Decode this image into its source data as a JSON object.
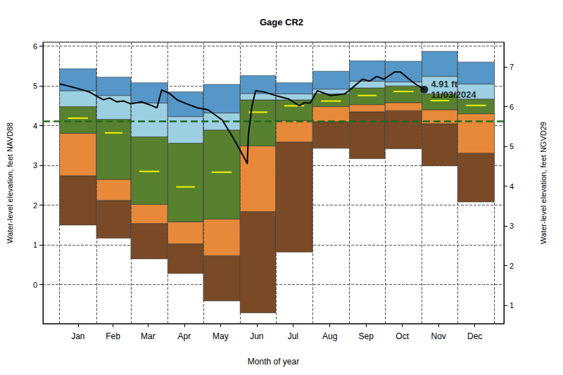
{
  "chart_data": {
    "type": "line",
    "title": "Gage CR2",
    "xlabel": "Month of year",
    "ylabel": "Water-level elevation, feet NAVD88",
    "y2label": "Water-level elevation, feet NGVD29",
    "xlim": [
      -14,
      374
    ],
    "xticks": [
      {
        "value": 15.5,
        "label": "Jan"
      },
      {
        "value": 45,
        "label": "Feb"
      },
      {
        "value": 74.5,
        "label": "Mar"
      },
      {
        "value": 105,
        "label": "Apr"
      },
      {
        "value": 135.5,
        "label": "May"
      },
      {
        "value": 166,
        "label": "Jun"
      },
      {
        "value": 196.5,
        "label": "Jul"
      },
      {
        "value": 227.5,
        "label": "Aug"
      },
      {
        "value": 258,
        "label": "Sep"
      },
      {
        "value": 288.5,
        "label": "Oct"
      },
      {
        "value": 319,
        "label": "Nov"
      },
      {
        "value": 349.5,
        "label": "Dec"
      }
    ],
    "ylim": [
      -0.98,
      6.1
    ],
    "yticks": [
      0,
      1,
      2,
      3,
      4,
      5,
      6
    ],
    "y2lim": [
      0.54,
      7.62
    ],
    "y2ticks": [
      1,
      2,
      3,
      4,
      5,
      6,
      7
    ],
    "grid": true,
    "month_starts": [
      0,
      31,
      60,
      91,
      121,
      152,
      182,
      213,
      244,
      274,
      305,
      335,
      366
    ],
    "percentile_bands": {
      "min": [
        1.5,
        1.17,
        0.65,
        0.28,
        -0.41,
        -0.71,
        0.82,
        3.43,
        3.17,
        3.42,
        2.99,
        2.08
      ],
      "p10": [
        2.74,
        2.12,
        1.54,
        1.03,
        0.73,
        1.84,
        3.59,
        4.1,
        4.35,
        4.38,
        4.05,
        3.31
      ],
      "p25": [
        3.81,
        2.65,
        2.02,
        1.58,
        1.65,
        3.49,
        4.13,
        4.48,
        4.53,
        4.58,
        4.4,
        4.3
      ],
      "median": [
        4.19,
        3.82,
        2.85,
        2.46,
        2.83,
        4.34,
        4.5,
        4.62,
        4.76,
        4.86,
        4.63,
        4.51
      ],
      "p75": [
        4.48,
        4.16,
        3.72,
        3.56,
        3.89,
        4.65,
        4.65,
        4.8,
        4.95,
        5.0,
        4.8,
        4.67
      ],
      "p90": [
        4.88,
        4.76,
        4.57,
        4.23,
        4.32,
        4.81,
        4.8,
        4.92,
        5.12,
        5.1,
        5.24,
        5.05
      ],
      "max": [
        5.43,
        5.22,
        5.08,
        4.85,
        5.04,
        5.26,
        5.08,
        5.37,
        5.63,
        5.62,
        5.87,
        5.6
      ],
      "colors": [
        "#7a4a26",
        "#e8893a",
        "#58812f",
        "#9ccfe2",
        "#5597c8"
      ],
      "median_color": "#f2f200"
    },
    "series": [
      {
        "color": "#000000",
        "x": [
          0,
          7,
          16,
          25,
          31,
          37,
          42,
          48,
          54,
          60,
          69,
          78,
          82,
          86,
          93,
          99,
          107,
          116,
          125,
          137,
          146,
          155,
          158,
          159,
          162,
          165,
          172,
          184,
          193,
          202,
          206,
          211,
          217,
          228,
          240,
          246,
          255,
          261,
          267,
          273,
          282,
          287,
          293,
          299,
          307
        ],
        "values": [
          5.05,
          5.0,
          4.93,
          4.85,
          4.75,
          4.65,
          4.7,
          4.6,
          4.62,
          4.55,
          4.6,
          4.5,
          4.45,
          4.9,
          4.8,
          4.65,
          4.55,
          4.45,
          4.4,
          4.14,
          3.7,
          3.22,
          3.04,
          3.79,
          4.5,
          4.88,
          4.85,
          4.74,
          4.67,
          4.5,
          4.58,
          4.57,
          4.88,
          4.76,
          4.8,
          4.94,
          5.17,
          5.12,
          5.24,
          5.17,
          5.35,
          5.35,
          5.2,
          5.06,
          4.91
        ]
      }
    ],
    "reference_line": {
      "value": 4.12,
      "color": "#1e6b1e",
      "line_style": "dashed"
    },
    "current_point": {
      "x": 307,
      "value": 4.91,
      "labels": [
        "4.91 ft",
        "11/03/2024"
      ],
      "color": "#000000"
    }
  }
}
